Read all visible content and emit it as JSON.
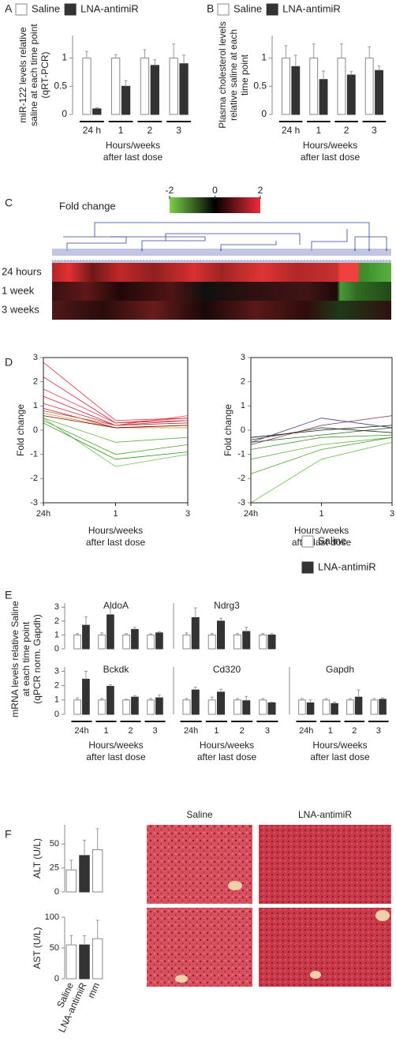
{
  "chart_data": [
    {
      "type": "bar",
      "panel": "A",
      "ylabel": [
        "miR-122 levels relative",
        "saline at each time point",
        "(qRT-PCR)"
      ],
      "xlabel": [
        "Hours/weeks",
        "after last dose"
      ],
      "categories": [
        "24 h",
        "1",
        "2",
        "3"
      ],
      "ylim": [
        0,
        1.4
      ],
      "yticks": [
        0,
        0.5,
        1
      ],
      "legend": "top",
      "series": [
        {
          "name": "Saline",
          "color": "#ffffff",
          "values": [
            1,
            1,
            1,
            1
          ],
          "errors": [
            0.12,
            0.06,
            0.15,
            0.25
          ]
        },
        {
          "name": "LNA-antimiR",
          "color": "#333333",
          "values": [
            0.1,
            0.5,
            0.87,
            0.9
          ],
          "errors": [
            0.02,
            0.1,
            0.1,
            0.15
          ]
        }
      ]
    },
    {
      "type": "bar",
      "panel": "B",
      "ylabel": [
        "Plasma cholesterol  levels",
        "relative saline at each",
        "time point"
      ],
      "xlabel": [
        "Hours/weeks",
        "after last dose"
      ],
      "categories": [
        "24 h",
        "1",
        "2",
        "3"
      ],
      "ylim": [
        0,
        1.4
      ],
      "yticks": [
        0,
        0.5,
        1
      ],
      "legend": "top",
      "series": [
        {
          "name": "Saline",
          "color": "#ffffff",
          "values": [
            1,
            1,
            1,
            1
          ],
          "errors": [
            0.22,
            0.25,
            0.25,
            0.2
          ]
        },
        {
          "name": "LNA-antimiR",
          "color": "#333333",
          "values": [
            0.85,
            0.62,
            0.7,
            0.78
          ],
          "errors": [
            0.2,
            0.15,
            0.06,
            0.08
          ]
        }
      ]
    },
    {
      "type": "heatmap",
      "panel": "C",
      "colorbar_label": "Fold change",
      "clim": [
        -2,
        2
      ],
      "ticks": [
        -2,
        0,
        2
      ],
      "rows": [
        "24 hours",
        "1 week",
        "3 weeks"
      ]
    },
    {
      "type": "line",
      "panel": "D",
      "ylabel": [
        "Fold change"
      ],
      "xlabel": [
        "Hours/weeks",
        "after last dose"
      ],
      "categories": [
        "24h",
        "1",
        "3"
      ],
      "ylim": [
        -3,
        3
      ],
      "yticks": [
        -3,
        -2,
        -1,
        0,
        1,
        2,
        3
      ],
      "series": [
        {
          "color": "#e0303a",
          "values": [
            2.8,
            0.4,
            0.5
          ]
        },
        {
          "color": "#d02030",
          "values": [
            2.2,
            0.3,
            0.4
          ]
        },
        {
          "color": "#e04050",
          "values": [
            1.7,
            0.3,
            0.5
          ]
        },
        {
          "color": "#c02030",
          "values": [
            1.4,
            0.2,
            0.3
          ]
        },
        {
          "color": "#d03040",
          "values": [
            1.1,
            0.2,
            0.4
          ]
        },
        {
          "color": "#b02020",
          "values": [
            0.9,
            0.1,
            0.2
          ]
        },
        {
          "color": "#e04040",
          "values": [
            0.8,
            0.2,
            0.6
          ]
        },
        {
          "color": "#c8a030",
          "values": [
            0.7,
            0.1,
            0.1
          ]
        },
        {
          "color": "#7a1010",
          "values": [
            0.6,
            0.1,
            0.2
          ]
        },
        {
          "color": "#60b040",
          "values": [
            0.5,
            -0.5,
            -0.3
          ]
        },
        {
          "color": "#50a030",
          "values": [
            0.4,
            -1.0,
            -0.6
          ]
        },
        {
          "color": "#70c050",
          "values": [
            0.5,
            -1.5,
            -1.0
          ]
        },
        {
          "color": "#309020",
          "values": [
            0.3,
            -1.2,
            -0.9
          ]
        }
      ]
    },
    {
      "type": "line",
      "ylabel": [
        "Fold change"
      ],
      "xlabel": [
        "Hours/weeks",
        "after last dose"
      ],
      "categories": [
        "24h",
        "1",
        "3"
      ],
      "ylim": [
        -3,
        3
      ],
      "yticks": [
        -3,
        -2,
        -1,
        0,
        1,
        2,
        3
      ],
      "series": [
        {
          "color": "#70c050",
          "values": [
            -3.0,
            -1.2,
            -0.5
          ]
        },
        {
          "color": "#60b040",
          "values": [
            -1.2,
            -0.6,
            -0.3
          ]
        },
        {
          "color": "#409030",
          "values": [
            -0.8,
            -0.3,
            -0.2
          ]
        },
        {
          "color": "#207020",
          "values": [
            -0.5,
            -0.2,
            0.1
          ]
        },
        {
          "color": "#303030",
          "values": [
            -0.4,
            0.1,
            -0.1
          ]
        },
        {
          "color": "#101010",
          "values": [
            -0.3,
            0,
            0.2
          ]
        },
        {
          "color": "#803040",
          "values": [
            -0.6,
            0.2,
            0.6
          ]
        },
        {
          "color": "#404080",
          "values": [
            -0.5,
            0.5,
            0.1
          ]
        },
        {
          "color": "#50a030",
          "values": [
            -1.8,
            -0.8,
            -0.3
          ]
        }
      ]
    },
    {
      "type": "bar",
      "panel": "E",
      "title": "AldoA",
      "ylabel": [
        "mRNA levels relative Saline",
        "at each time point",
        "(qPCR norm. Gapdh)"
      ],
      "legend": "right",
      "categories": [
        null,
        null,
        null,
        null
      ],
      "ylim": [
        0,
        3.3
      ],
      "yticks": [
        0,
        1,
        2,
        3
      ],
      "series": [
        {
          "name": "Saline",
          "color": "#ffffff",
          "values": [
            1,
            1,
            1,
            1
          ],
          "errors": [
            0.1,
            0.15,
            0.1,
            0.08
          ]
        },
        {
          "name": "LNA-antimiR",
          "color": "#333333",
          "values": [
            1.7,
            2.45,
            1.4,
            1.15
          ],
          "errors": [
            0.6,
            0.5,
            0.15,
            0.08
          ]
        }
      ]
    },
    {
      "type": "bar",
      "title": "Ndrg3",
      "categories": [
        null,
        null,
        null,
        null
      ],
      "ylim": [
        0,
        3.3
      ],
      "series": [
        {
          "color": "#ffffff",
          "values": [
            1,
            1,
            1,
            1
          ],
          "errors": [
            0.15,
            0.1,
            0.1,
            0.1
          ]
        },
        {
          "color": "#333333",
          "values": [
            2.25,
            2.0,
            1.25,
            1.0
          ],
          "errors": [
            0.7,
            0.2,
            0.3,
            0.1
          ]
        }
      ]
    },
    {
      "type": "bar",
      "title": "Bckdk",
      "xlabel": [
        "Hours/weeks",
        "after last dose"
      ],
      "categories": [
        "24h",
        "1",
        "2",
        "3"
      ],
      "ylim": [
        0,
        3.3
      ],
      "yticks": [
        0,
        1,
        2,
        3
      ],
      "series": [
        {
          "color": "#ffffff",
          "values": [
            1,
            1,
            1,
            1
          ],
          "errors": [
            0.15,
            0.1,
            0.05,
            0.1
          ]
        },
        {
          "color": "#333333",
          "values": [
            2.45,
            1.95,
            1.2,
            1.15
          ],
          "errors": [
            0.55,
            0.1,
            0.1,
            0.2
          ]
        }
      ]
    },
    {
      "type": "bar",
      "title": "Cd320",
      "xlabel": [
        "Hours/weeks",
        "after last dose"
      ],
      "categories": [
        "24h",
        "1",
        "2",
        "3"
      ],
      "ylim": [
        0,
        3.3
      ],
      "series": [
        {
          "color": "#ffffff",
          "values": [
            1,
            1,
            1,
            1
          ],
          "errors": [
            0.1,
            0.2,
            0.1,
            0.1
          ]
        },
        {
          "color": "#333333",
          "values": [
            1.7,
            1.55,
            0.95,
            0.8
          ],
          "errors": [
            0.2,
            0.2,
            0.3,
            0.05
          ]
        }
      ]
    },
    {
      "type": "bar",
      "title": "Gapdh",
      "xlabel": [
        "Hours/weeks",
        "after last dose"
      ],
      "categories": [
        "24h",
        "1",
        "2",
        "3"
      ],
      "ylim": [
        0,
        3.3
      ],
      "series": [
        {
          "color": "#ffffff",
          "values": [
            1,
            1,
            1,
            1
          ],
          "errors": [
            0.1,
            0.1,
            0.1,
            0.1
          ]
        },
        {
          "color": "#333333",
          "values": [
            0.8,
            0.75,
            1.2,
            1.05
          ],
          "errors": [
            0.2,
            0.1,
            0.5,
            0.1
          ]
        }
      ]
    },
    {
      "type": "bar",
      "panel": "F",
      "ylabel": [
        "ALT (U/L)"
      ],
      "categories": [
        null,
        null,
        null
      ],
      "values": [
        23,
        38,
        44
      ],
      "errors": [
        10,
        16,
        22
      ],
      "colors": [
        "#ffffff",
        "#333333",
        "#ffffff"
      ],
      "ylim": [
        0,
        70
      ],
      "yticks": [
        0,
        25,
        50
      ]
    },
    {
      "type": "bar",
      "ylabel": [
        "AST (U/L)"
      ],
      "categories": [
        "Saline",
        "LNA-antimiR",
        "mm"
      ],
      "values": [
        55,
        55,
        65
      ],
      "errors": [
        15,
        15,
        30
      ],
      "colors": [
        "#ffffff",
        "#333333",
        "#ffffff"
      ],
      "ylim": [
        0,
        100
      ],
      "yticks": [
        0,
        50,
        100
      ]
    },
    {
      "type": "micrograph",
      "columns": [
        "Saline",
        "LNA-antimiR"
      ]
    }
  ]
}
